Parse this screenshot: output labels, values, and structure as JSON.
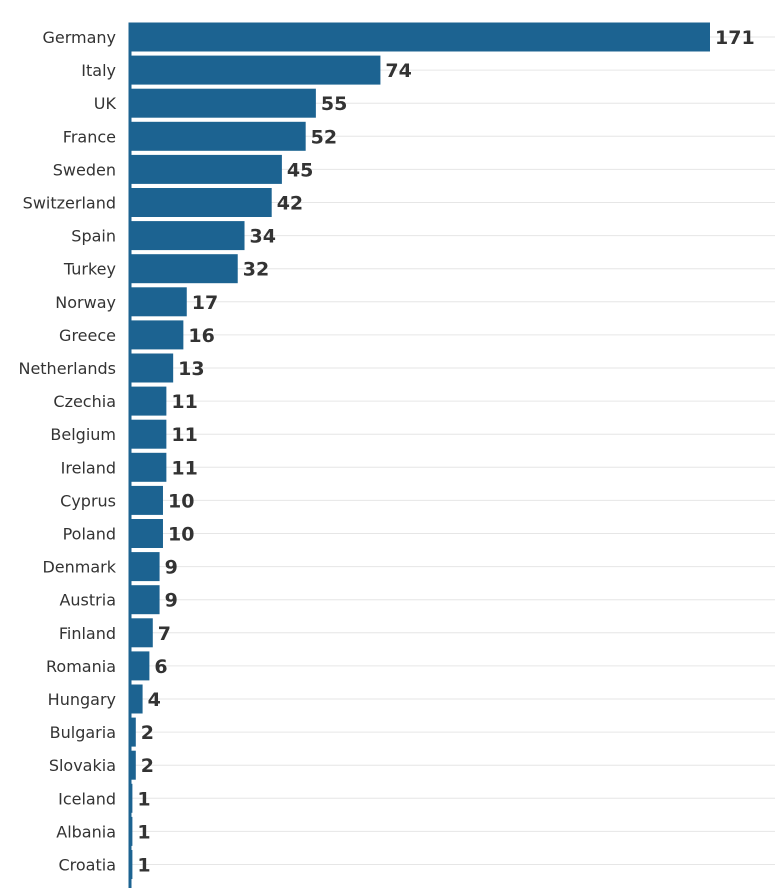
{
  "chart_data": {
    "type": "bar",
    "orientation": "horizontal",
    "title": "",
    "xlabel": "",
    "ylabel": "",
    "categories": [
      "Germany",
      "Italy",
      "UK",
      "France",
      "Sweden",
      "Switzerland",
      "Spain",
      "Turkey",
      "Norway",
      "Greece",
      "Netherlands",
      "Czechia",
      "Belgium",
      "Ireland",
      "Cyprus",
      "Poland",
      "Denmark",
      "Austria",
      "Finland",
      "Romania",
      "Hungary",
      "Bulgaria",
      "Slovakia",
      "Iceland",
      "Albania",
      "Croatia"
    ],
    "values": [
      171,
      74,
      55,
      52,
      45,
      42,
      34,
      32,
      17,
      16,
      13,
      11,
      11,
      11,
      10,
      10,
      9,
      9,
      7,
      6,
      4,
      2,
      2,
      1,
      1,
      1
    ],
    "xlim": [
      0,
      190
    ],
    "grid": true,
    "legend": "none",
    "bar_color": "#1c6391",
    "value_labels": true
  }
}
